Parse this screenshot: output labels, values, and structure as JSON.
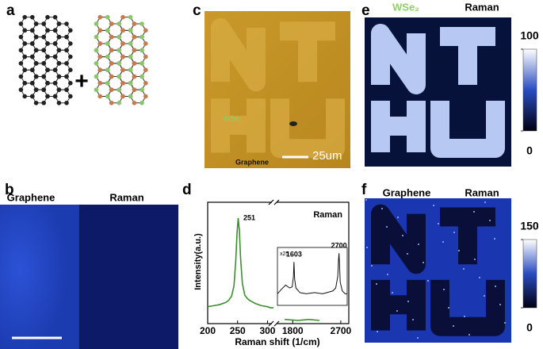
{
  "panel_labels": [
    "a",
    "b",
    "c",
    "d",
    "e",
    "f"
  ],
  "panel_b": {
    "left_label": "Graphene",
    "right_label": "Raman"
  },
  "panel_c": {
    "material_label": "WSe₂",
    "substrate_label": "Graphene",
    "scale_bar": "25um"
  },
  "panel_e": {
    "material_label": "WSe₂",
    "right_label": "Raman",
    "colorbar_ticks": [
      100,
      0
    ]
  },
  "panel_f": {
    "left_label": "Graphene",
    "right_label": "Raman",
    "colorbar_ticks": [
      150,
      0
    ]
  },
  "chart_data": [
    {
      "type": "line",
      "title": "Raman",
      "xlabel": "Raman shift (1/cm)",
      "ylabel": "Intensity(a.u.)",
      "x": [
        200,
        210,
        220,
        230,
        235,
        240,
        244,
        247,
        249,
        251,
        253,
        255,
        258,
        262,
        266,
        270,
        280,
        290,
        300,
        305,
        310
      ],
      "series": [
        {
          "color": "#3a8f2c",
          "values": [
            0.16,
            0.17,
            0.18,
            0.2,
            0.22,
            0.26,
            0.36,
            0.6,
            0.85,
            1.0,
            0.88,
            0.62,
            0.38,
            0.27,
            0.24,
            0.22,
            0.19,
            0.17,
            0.16,
            0.15,
            0.15
          ]
        }
      ],
      "xlim": [
        200,
        310
      ],
      "xticks": [
        200,
        250,
        300
      ],
      "ylim": [
        0,
        1.15
      ],
      "peaks": [
        251
      ]
    },
    {
      "type": "line",
      "x": [
        1650,
        1900,
        2100,
        2300
      ],
      "series": [
        {
          "color": "#3a8f2c",
          "values": [
            0.04,
            0.03,
            0.04,
            0.03
          ]
        }
      ],
      "xlim": [
        1500,
        2850
      ],
      "xticks": [
        1800,
        2700
      ],
      "ylim": [
        0,
        1.15
      ]
    },
    {
      "type": "line",
      "annotation": "x25",
      "x": [
        1200,
        1300,
        1400,
        1500,
        1560,
        1590,
        1603,
        1620,
        1650,
        1750,
        1900,
        2100,
        2300,
        2450,
        2550,
        2620,
        2670,
        2690,
        2700,
        2710,
        2730,
        2780,
        2850,
        2900
      ],
      "series": [
        {
          "color": "#111111",
          "values": [
            0.2,
            0.28,
            0.35,
            0.3,
            0.32,
            0.5,
            0.75,
            0.45,
            0.3,
            0.22,
            0.2,
            0.22,
            0.2,
            0.23,
            0.25,
            0.3,
            0.5,
            0.8,
            0.9,
            0.75,
            0.4,
            0.25,
            0.2,
            0.2
          ]
        }
      ],
      "xlim": [
        1200,
        2900
      ],
      "ylim": [
        0,
        1
      ],
      "peaks": [
        1603,
        2700
      ]
    }
  ]
}
